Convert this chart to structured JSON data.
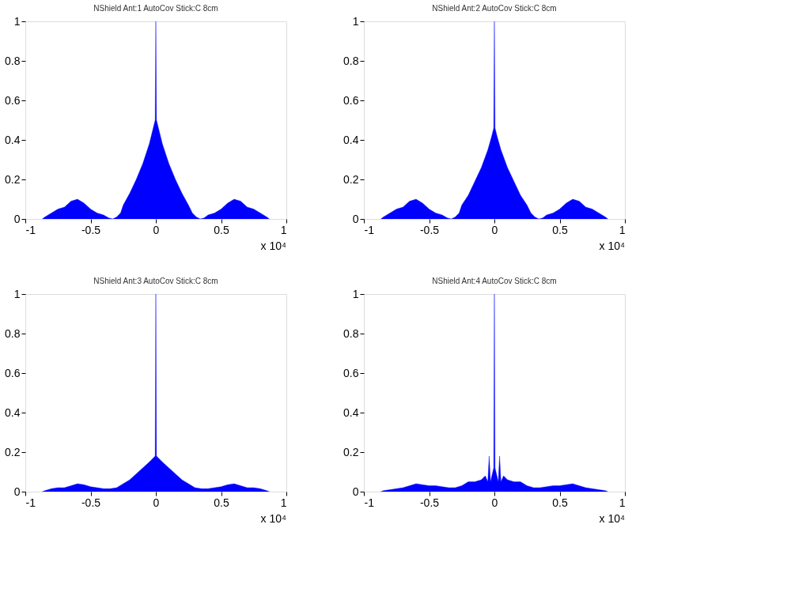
{
  "chart_data": [
    {
      "type": "area",
      "title": "NShield Ant:1 AutoCov Stick:C 8cm",
      "color": "#0000ff",
      "xlim": [
        -1,
        1
      ],
      "ylim": [
        0,
        1
      ],
      "xticks": [
        -1,
        -0.5,
        0,
        0.5,
        1
      ],
      "yticks": [
        0,
        0.2,
        0.4,
        0.6,
        0.8,
        1
      ],
      "annotations": [
        "x 10⁴"
      ],
      "x": [
        -0.87,
        -0.85,
        -0.8,
        -0.75,
        -0.7,
        -0.65,
        -0.6,
        -0.55,
        -0.5,
        -0.45,
        -0.4,
        -0.36,
        -0.33,
        -0.3,
        -0.27,
        -0.25,
        -0.2,
        -0.15,
        -0.1,
        -0.05,
        -0.02,
        -0.005,
        0,
        0.005,
        0.02,
        0.05,
        0.1,
        0.15,
        0.2,
        0.25,
        0.28,
        0.31,
        0.34,
        0.37,
        0.4,
        0.45,
        0.5,
        0.55,
        0.6,
        0.65,
        0.7,
        0.75,
        0.8,
        0.85,
        0.87
      ],
      "values": [
        0,
        0.01,
        0.03,
        0.05,
        0.06,
        0.09,
        0.1,
        0.08,
        0.05,
        0.03,
        0.02,
        0.005,
        0,
        0.01,
        0.03,
        0.07,
        0.13,
        0.2,
        0.28,
        0.38,
        0.46,
        0.5,
        1,
        0.5,
        0.46,
        0.38,
        0.28,
        0.2,
        0.13,
        0.07,
        0.03,
        0.01,
        0,
        0.005,
        0.02,
        0.03,
        0.05,
        0.08,
        0.1,
        0.09,
        0.06,
        0.05,
        0.03,
        0.01,
        0
      ]
    },
    {
      "type": "area",
      "title": "NShield Ant:2 AutoCov Stick:C 8cm",
      "color": "#0000ff",
      "xlim": [
        -1,
        1
      ],
      "ylim": [
        0,
        1
      ],
      "xticks": [
        -1,
        -0.5,
        0,
        0.5,
        1
      ],
      "yticks": [
        0,
        0.2,
        0.4,
        0.6,
        0.8,
        1
      ],
      "annotations": [
        "x 10⁴"
      ],
      "x": [
        -0.87,
        -0.85,
        -0.8,
        -0.75,
        -0.7,
        -0.65,
        -0.6,
        -0.55,
        -0.5,
        -0.45,
        -0.4,
        -0.36,
        -0.33,
        -0.3,
        -0.27,
        -0.25,
        -0.2,
        -0.15,
        -0.1,
        -0.05,
        -0.02,
        -0.005,
        0,
        0.005,
        0.02,
        0.05,
        0.1,
        0.15,
        0.2,
        0.25,
        0.28,
        0.31,
        0.34,
        0.37,
        0.4,
        0.45,
        0.5,
        0.55,
        0.6,
        0.65,
        0.7,
        0.75,
        0.8,
        0.85,
        0.87
      ],
      "values": [
        0,
        0.01,
        0.03,
        0.05,
        0.06,
        0.09,
        0.1,
        0.08,
        0.05,
        0.03,
        0.02,
        0.005,
        0,
        0.01,
        0.03,
        0.07,
        0.12,
        0.19,
        0.26,
        0.35,
        0.42,
        0.46,
        1,
        0.46,
        0.42,
        0.35,
        0.26,
        0.19,
        0.12,
        0.07,
        0.03,
        0.01,
        0,
        0.005,
        0.02,
        0.03,
        0.05,
        0.08,
        0.1,
        0.09,
        0.06,
        0.05,
        0.03,
        0.01,
        0
      ]
    },
    {
      "type": "area",
      "title": "NShield Ant:3 AutoCov Stick:C 8cm",
      "color": "#0000ff",
      "xlim": [
        -1,
        1
      ],
      "ylim": [
        0,
        1
      ],
      "xticks": [
        -1,
        -0.5,
        0,
        0.5,
        1
      ],
      "yticks": [
        0,
        0.2,
        0.4,
        0.6,
        0.8,
        1
      ],
      "annotations": [
        "x 10⁴"
      ],
      "x": [
        -0.87,
        -0.85,
        -0.8,
        -0.75,
        -0.7,
        -0.65,
        -0.6,
        -0.55,
        -0.5,
        -0.45,
        -0.4,
        -0.35,
        -0.3,
        -0.25,
        -0.2,
        -0.15,
        -0.1,
        -0.05,
        -0.02,
        -0.005,
        0,
        0.005,
        0.02,
        0.05,
        0.1,
        0.15,
        0.2,
        0.25,
        0.3,
        0.35,
        0.4,
        0.45,
        0.5,
        0.55,
        0.6,
        0.65,
        0.7,
        0.75,
        0.8,
        0.85,
        0.87
      ],
      "values": [
        0,
        0.005,
        0.015,
        0.02,
        0.02,
        0.03,
        0.04,
        0.035,
        0.025,
        0.02,
        0.015,
        0.015,
        0.02,
        0.04,
        0.06,
        0.09,
        0.12,
        0.15,
        0.17,
        0.18,
        1,
        0.18,
        0.17,
        0.15,
        0.12,
        0.09,
        0.06,
        0.04,
        0.02,
        0.015,
        0.015,
        0.02,
        0.025,
        0.035,
        0.04,
        0.03,
        0.02,
        0.02,
        0.015,
        0.005,
        0
      ]
    },
    {
      "type": "area",
      "title": "NShield Ant:4 AutoCov Stick:C 8cm",
      "color": "#0000ff",
      "xlim": [
        -1,
        1
      ],
      "ylim": [
        0,
        1
      ],
      "xticks": [
        -1,
        -0.5,
        0,
        0.5,
        1
      ],
      "yticks": [
        0,
        0.2,
        0.4,
        0.6,
        0.8,
        1
      ],
      "annotations": [
        "x 10⁴"
      ],
      "x": [
        -0.87,
        -0.85,
        -0.8,
        -0.75,
        -0.7,
        -0.65,
        -0.6,
        -0.55,
        -0.5,
        -0.45,
        -0.4,
        -0.35,
        -0.3,
        -0.25,
        -0.2,
        -0.15,
        -0.1,
        -0.07,
        -0.05,
        -0.04,
        -0.03,
        -0.005,
        0,
        0.005,
        0.03,
        0.04,
        0.05,
        0.07,
        0.1,
        0.15,
        0.2,
        0.25,
        0.3,
        0.35,
        0.4,
        0.45,
        0.5,
        0.55,
        0.6,
        0.65,
        0.7,
        0.75,
        0.8,
        0.85,
        0.87
      ],
      "values": [
        0,
        0.005,
        0.01,
        0.015,
        0.02,
        0.03,
        0.04,
        0.035,
        0.03,
        0.03,
        0.025,
        0.02,
        0.02,
        0.03,
        0.05,
        0.05,
        0.06,
        0.08,
        0.05,
        0.18,
        0.05,
        0.12,
        1,
        0.12,
        0.05,
        0.18,
        0.05,
        0.08,
        0.06,
        0.05,
        0.05,
        0.03,
        0.02,
        0.02,
        0.025,
        0.03,
        0.03,
        0.035,
        0.04,
        0.03,
        0.02,
        0.015,
        0.01,
        0.005,
        0
      ]
    }
  ]
}
